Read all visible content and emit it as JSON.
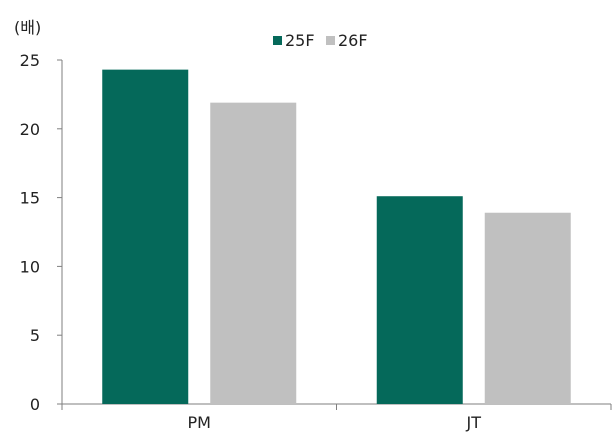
{
  "chart_data": {
    "type": "bar",
    "unit_label": "(배)",
    "categories": [
      "PM",
      "JT"
    ],
    "series": [
      {
        "name": "25F",
        "values": [
          24.3,
          15.1
        ],
        "color": "#05695a"
      },
      {
        "name": "26F",
        "values": [
          21.9,
          13.9
        ],
        "color": "#c0c0c0"
      }
    ],
    "ylim": [
      0,
      25
    ],
    "yticks": [
      0,
      5,
      10,
      15,
      20,
      25
    ],
    "grid": false,
    "legend_position": "top-center"
  }
}
